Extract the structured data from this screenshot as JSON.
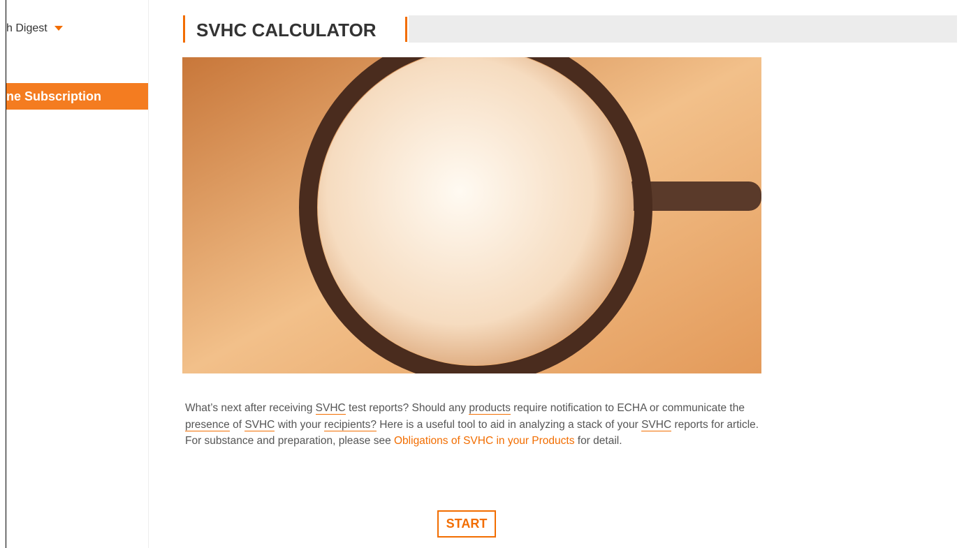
{
  "sidebar": {
    "menu_item": "h Digest",
    "active_item": "ne Subscription"
  },
  "header": {
    "title": "SVHC CALCULATOR"
  },
  "paragraph": {
    "segments": [
      "What’s next after receiving ",
      "SVHC",
      " test reports? Should any ",
      "products",
      " require notification to ECHA or communicate the ",
      "presence",
      " of ",
      "SVHC",
      " with your ",
      "recipients?",
      " Here is a useful tool to aid in analyzing a stack of your ",
      "SVHC",
      " reports for article. For substance and preparation, please see ",
      "Obligations of SVHC in your Products",
      " for detail."
    ]
  },
  "button": {
    "label": "START"
  }
}
